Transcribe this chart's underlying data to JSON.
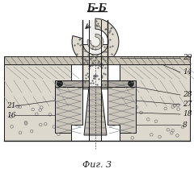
{
  "bg": "#ffffff",
  "lc": "#1a1a1a",
  "section_label": "Б-Б",
  "caption": "Фиг. 3",
  "right_labels": [
    [
      "29",
      225,
      72
    ],
    [
      "14",
      225,
      90
    ],
    [
      "28",
      225,
      118
    ],
    [
      "27",
      225,
      130
    ],
    [
      "18",
      225,
      142
    ],
    [
      "8",
      225,
      155
    ]
  ],
  "left_labels": [
    [
      "21",
      8,
      132
    ],
    [
      "16",
      8,
      143
    ]
  ]
}
